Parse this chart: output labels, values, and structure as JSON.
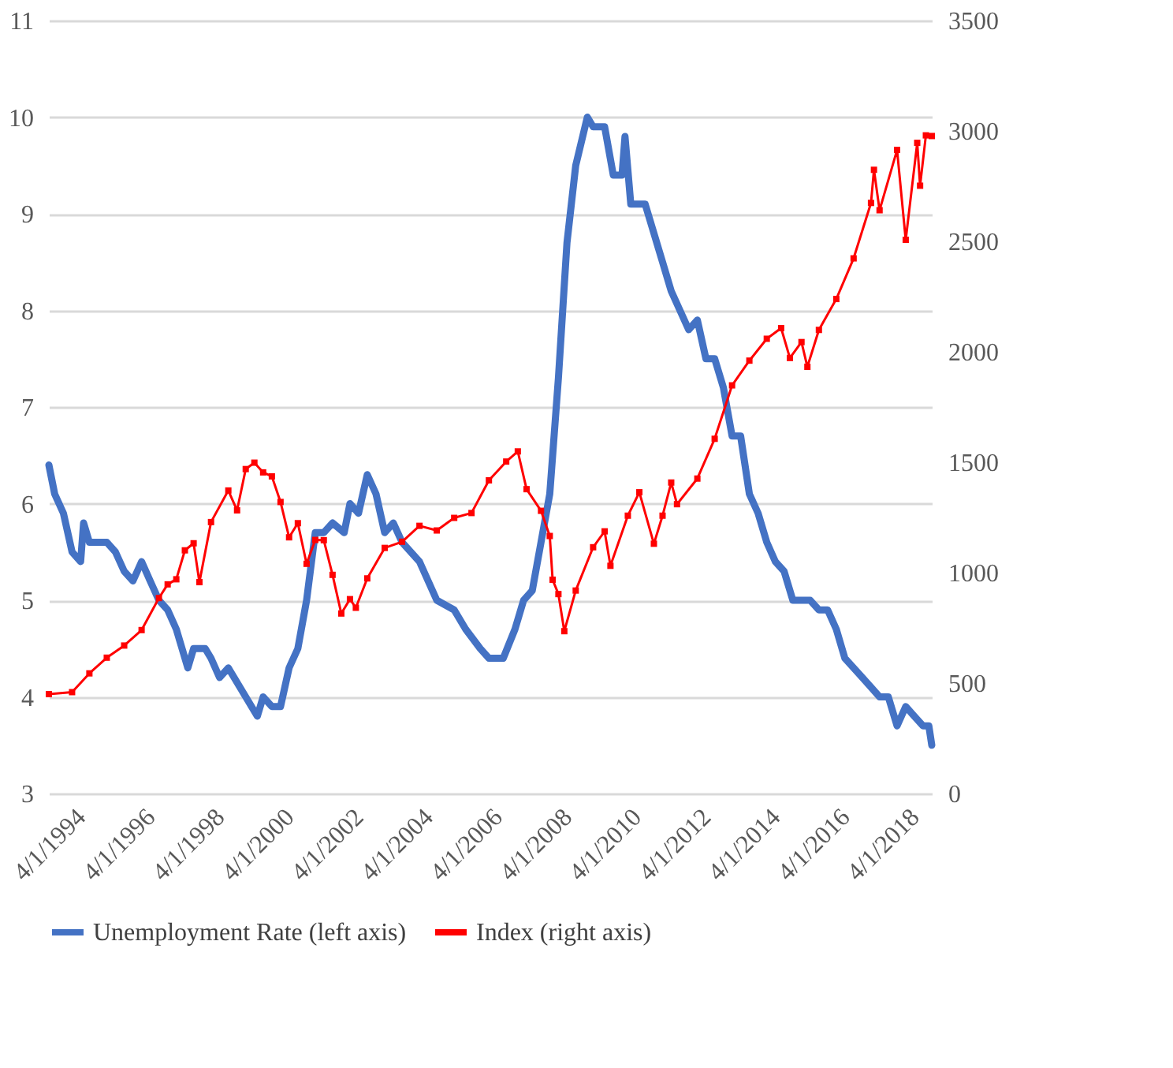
{
  "chart_data": {
    "type": "line",
    "xlim": [
      "1994-04",
      "2019-09"
    ],
    "xticks": [
      {
        "value": "1994-04-01",
        "label": "4/1/1994"
      },
      {
        "value": "1996-04-01",
        "label": "4/1/1996"
      },
      {
        "value": "1998-04-01",
        "label": "4/1/1998"
      },
      {
        "value": "2000-04-01",
        "label": "4/1/2000"
      },
      {
        "value": "2002-04-01",
        "label": "4/1/2002"
      },
      {
        "value": "2004-04-01",
        "label": "4/1/2004"
      },
      {
        "value": "2006-04-01",
        "label": "4/1/2006"
      },
      {
        "value": "2008-04-01",
        "label": "4/1/2008"
      },
      {
        "value": "2010-04-01",
        "label": "4/1/2010"
      },
      {
        "value": "2012-04-01",
        "label": "4/1/2012"
      },
      {
        "value": "2014-04-01",
        "label": "4/1/2014"
      },
      {
        "value": "2016-04-01",
        "label": "4/1/2016"
      },
      {
        "value": "2018-04-01",
        "label": "4/1/2018"
      }
    ],
    "ylim": [
      3,
      11
    ],
    "yticks": [
      3,
      4,
      5,
      6,
      7,
      8,
      9,
      10,
      11
    ],
    "y2lim": [
      0,
      3500
    ],
    "y2ticks": [
      0,
      500,
      1000,
      1500,
      2000,
      2500,
      3000,
      3500
    ],
    "grid": "y",
    "legend": "bottom",
    "line_style": "solid",
    "series": [
      {
        "name": "Unemployment Rate (left axis)",
        "color": "#4472c4",
        "marker": "none",
        "x": [
          "1994-04",
          "1994-06",
          "1994-09",
          "1994-12",
          "1995-03",
          "1995-04",
          "1995-06",
          "1995-09",
          "1995-12",
          "1996-03",
          "1996-06",
          "1996-09",
          "1996-12",
          "1997-03",
          "1997-06",
          "1997-09",
          "1997-12",
          "1998-04",
          "1998-06",
          "1998-10",
          "1998-12",
          "1999-03",
          "1999-06",
          "1999-12",
          "2000-04",
          "2000-06",
          "2000-09",
          "2000-12",
          "2001-03",
          "2001-06",
          "2001-09",
          "2001-12",
          "2002-03",
          "2002-06",
          "2002-10",
          "2002-12",
          "2003-03",
          "2003-06",
          "2003-09",
          "2003-12",
          "2004-03",
          "2004-06",
          "2004-12",
          "2005-06",
          "2005-12",
          "2006-04",
          "2006-09",
          "2006-12",
          "2007-03",
          "2007-05",
          "2007-09",
          "2007-12",
          "2008-03",
          "2008-06",
          "2008-09",
          "2008-12",
          "2009-03",
          "2009-06",
          "2009-10",
          "2009-12",
          "2010-04",
          "2010-07",
          "2010-10",
          "2010-11",
          "2011-01",
          "2011-06",
          "2011-12",
          "2012-03",
          "2012-09",
          "2012-12",
          "2013-03",
          "2013-06",
          "2013-09",
          "2013-12",
          "2014-03",
          "2014-06",
          "2014-09",
          "2014-12",
          "2015-03",
          "2015-06",
          "2015-09",
          "2015-12",
          "2016-03",
          "2016-06",
          "2016-09",
          "2016-12",
          "2017-03",
          "2017-06",
          "2017-09",
          "2017-12",
          "2018-03",
          "2018-06",
          "2018-09",
          "2018-12",
          "2019-03",
          "2019-06",
          "2019-08",
          "2019-09"
        ],
        "values": [
          6.4,
          6.1,
          5.9,
          5.5,
          5.4,
          5.8,
          5.6,
          5.6,
          5.6,
          5.5,
          5.3,
          5.2,
          5.4,
          5.2,
          5.0,
          4.9,
          4.7,
          4.3,
          4.5,
          4.5,
          4.4,
          4.2,
          4.3,
          4.0,
          3.8,
          4.0,
          3.9,
          3.9,
          4.3,
          4.5,
          5.0,
          5.7,
          5.7,
          5.8,
          5.7,
          6.0,
          5.9,
          6.3,
          6.1,
          5.7,
          5.8,
          5.6,
          5.4,
          5.0,
          4.9,
          4.7,
          4.5,
          4.4,
          4.4,
          4.4,
          4.7,
          5.0,
          5.1,
          5.6,
          6.1,
          7.3,
          8.7,
          9.5,
          10.0,
          9.9,
          9.9,
          9.4,
          9.4,
          9.8,
          9.1,
          9.1,
          8.5,
          8.2,
          7.8,
          7.9,
          7.5,
          7.5,
          7.2,
          6.7,
          6.7,
          6.1,
          5.9,
          5.6,
          5.4,
          5.3,
          5.0,
          5.0,
          5.0,
          4.9,
          4.9,
          4.7,
          4.4,
          4.3,
          4.2,
          4.1,
          4.0,
          4.0,
          3.7,
          3.9,
          3.8,
          3.7,
          3.7,
          3.5
        ]
      },
      {
        "name": "Index (right axis)",
        "color": "#ff0000",
        "marker": "square",
        "axis": "y2",
        "x": [
          "1994-04",
          "1994-12",
          "1995-06",
          "1995-12",
          "1996-06",
          "1996-12",
          "1997-06",
          "1997-09",
          "1997-12",
          "1998-03",
          "1998-06",
          "1998-08",
          "1998-12",
          "1999-06",
          "1999-09",
          "1999-12",
          "2000-03",
          "2000-06",
          "2000-09",
          "2000-12",
          "2001-03",
          "2001-06",
          "2001-09",
          "2001-12",
          "2002-03",
          "2002-06",
          "2002-09",
          "2002-12",
          "2003-02",
          "2003-06",
          "2003-12",
          "2004-06",
          "2004-12",
          "2005-06",
          "2005-12",
          "2006-06",
          "2006-12",
          "2007-06",
          "2007-10",
          "2008-01",
          "2008-06",
          "2008-09",
          "2008-10",
          "2008-12",
          "2009-02",
          "2009-06",
          "2009-12",
          "2010-04",
          "2010-06",
          "2010-12",
          "2011-04",
          "2011-09",
          "2011-12",
          "2012-03",
          "2012-05",
          "2012-12",
          "2013-06",
          "2013-12",
          "2014-06",
          "2014-12",
          "2015-05",
          "2015-08",
          "2015-12",
          "2016-02",
          "2016-06",
          "2016-12",
          "2017-06",
          "2017-12",
          "2018-01",
          "2018-03",
          "2018-09",
          "2018-12",
          "2019-04",
          "2019-05",
          "2019-07",
          "2019-09"
        ],
        "values": [
          450,
          459,
          544,
          615,
          670,
          740,
          885,
          947,
          970,
          1101,
          1133,
          957,
          1229,
          1372,
          1282,
          1469,
          1498,
          1454,
          1436,
          1320,
          1160,
          1224,
          1040,
          1148,
          1147,
          990,
          815,
          880,
          841,
          974,
          1112,
          1140,
          1212,
          1191,
          1248,
          1270,
          1418,
          1503,
          1549,
          1378,
          1280,
          1166,
          968,
          903,
          735,
          919,
          1115,
          1187,
          1031,
          1258,
          1364,
          1131,
          1258,
          1408,
          1310,
          1426,
          1606,
          1848,
          1960,
          2059,
          2107,
          1972,
          2044,
          1932,
          2099,
          2239,
          2423,
          2674,
          2824,
          2641,
          2914,
          2507,
          2946,
          2752,
          2980,
          2977
        ]
      }
    ]
  }
}
